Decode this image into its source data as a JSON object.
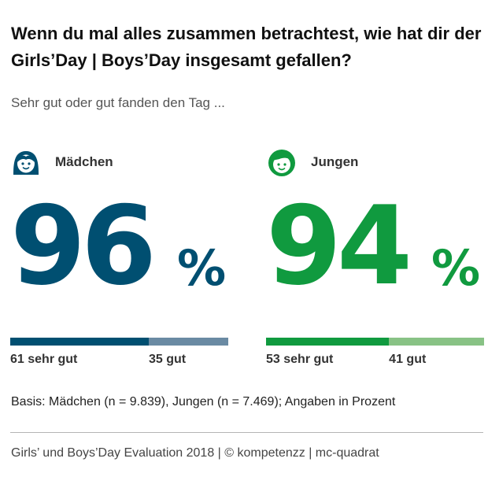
{
  "title": "Wenn du mal alles zusammen betrachtest, wie hat dir der Girls’Day | Boys’Day insgesamt gefallen?",
  "subtitle": "Sehr gut oder gut fanden den Tag ...",
  "colors": {
    "girls_primary": "#004f71",
    "girls_secondary": "#6a8aa3",
    "boys_primary": "#109a3f",
    "boys_secondary": "#88c285"
  },
  "icons": {
    "girls": "girl-face-icon",
    "boys": "boy-face-icon"
  },
  "chart_data": {
    "type": "bar",
    "orientation": "horizontal-stacked",
    "title": "Wenn du mal alles zusammen betrachtest, wie hat dir der Girls’Day | Boys’Day insgesamt gefallen?",
    "subtitle": "Sehr gut oder gut fanden den Tag ...",
    "categories": [
      "Mädchen",
      "Jungen"
    ],
    "totals": [
      "96",
      "94"
    ],
    "percent_sign": "%",
    "series": [
      {
        "name": "sehr gut",
        "values": [
          61,
          53
        ]
      },
      {
        "name": "gut",
        "values": [
          35,
          41
        ]
      }
    ],
    "segment_labels": [
      [
        "61 sehr gut",
        "35 gut"
      ],
      [
        "53 sehr gut",
        "41 gut"
      ]
    ],
    "xlim": [
      0,
      100
    ]
  },
  "note": "Basis: Mädchen (n = 9.839), Jungen (n = 7.469); Angaben in Prozent",
  "source": "Girls’ und Boys’Day Evaluation 2018 | © kompetenzz | mc-quadrat"
}
